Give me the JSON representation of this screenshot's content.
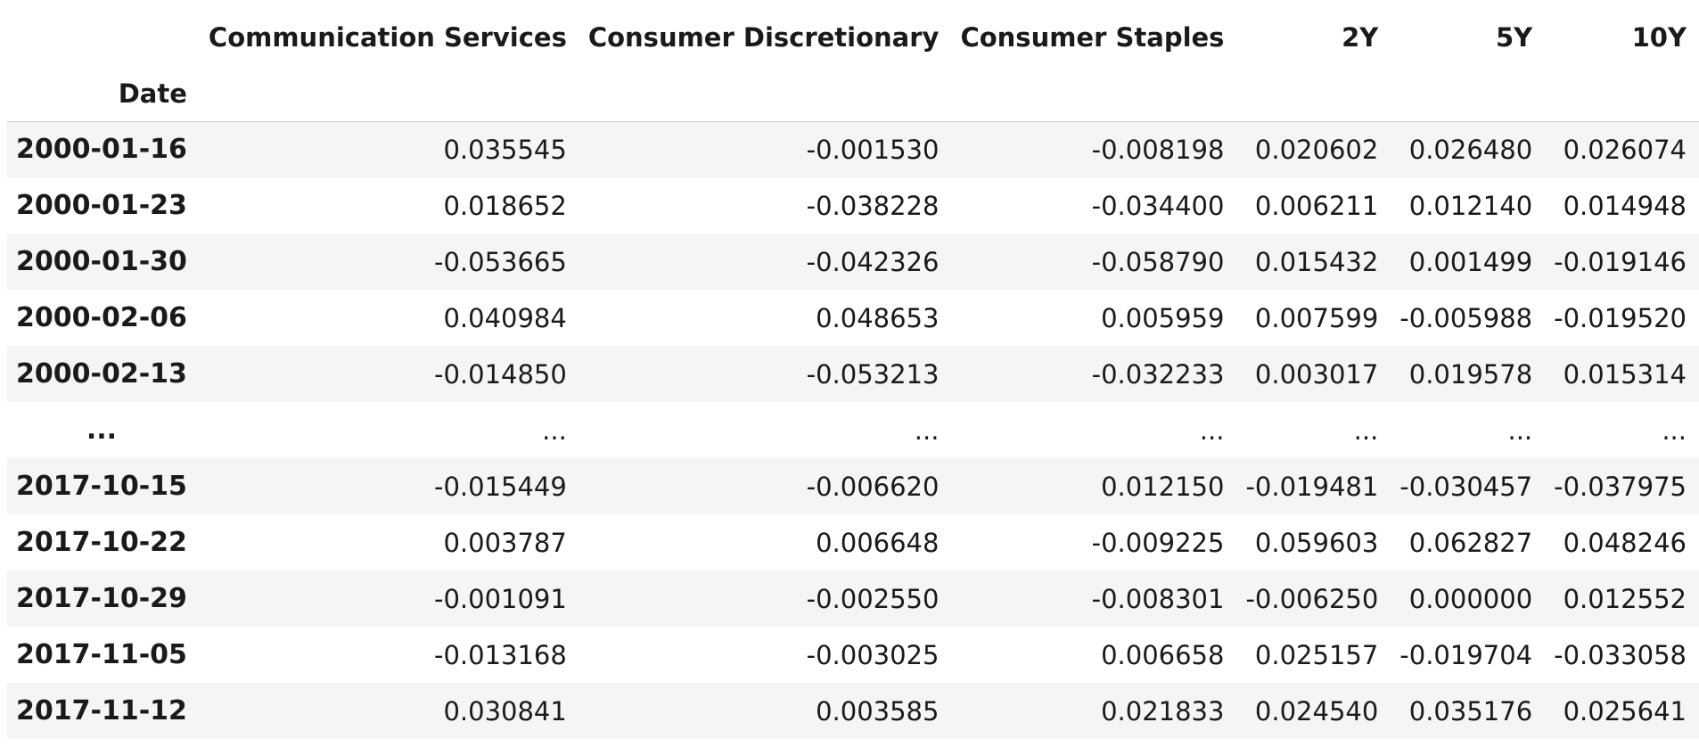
{
  "table": {
    "index_name": "Date",
    "columns": [
      "Communication Services",
      "Consumer Discretionary",
      "Consumer Staples",
      "2Y",
      "5Y",
      "10Y"
    ],
    "rows": [
      {
        "index": "2000-01-16",
        "values": [
          "0.035545",
          "-0.001530",
          "-0.008198",
          "0.020602",
          "0.026480",
          "0.026074"
        ]
      },
      {
        "index": "2000-01-23",
        "values": [
          "0.018652",
          "-0.038228",
          "-0.034400",
          "0.006211",
          "0.012140",
          "0.014948"
        ]
      },
      {
        "index": "2000-01-30",
        "values": [
          "-0.053665",
          "-0.042326",
          "-0.058790",
          "0.015432",
          "0.001499",
          "-0.019146"
        ]
      },
      {
        "index": "2000-02-06",
        "values": [
          "0.040984",
          "0.048653",
          "0.005959",
          "0.007599",
          "-0.005988",
          "-0.019520"
        ]
      },
      {
        "index": "2000-02-13",
        "values": [
          "-0.014850",
          "-0.053213",
          "-0.032233",
          "0.003017",
          "0.019578",
          "0.015314"
        ]
      },
      {
        "index": "...",
        "values": [
          "...",
          "...",
          "...",
          "...",
          "...",
          "..."
        ]
      },
      {
        "index": "2017-10-15",
        "values": [
          "-0.015449",
          "-0.006620",
          "0.012150",
          "-0.019481",
          "-0.030457",
          "-0.037975"
        ]
      },
      {
        "index": "2017-10-22",
        "values": [
          "0.003787",
          "0.006648",
          "-0.009225",
          "0.059603",
          "0.062827",
          "0.048246"
        ]
      },
      {
        "index": "2017-10-29",
        "values": [
          "-0.001091",
          "-0.002550",
          "-0.008301",
          "-0.006250",
          "0.000000",
          "0.012552"
        ]
      },
      {
        "index": "2017-11-05",
        "values": [
          "-0.013168",
          "-0.003025",
          "0.006658",
          "0.025157",
          "-0.019704",
          "-0.033058"
        ]
      },
      {
        "index": "2017-11-12",
        "values": [
          "0.030841",
          "0.003585",
          "0.021833",
          "0.024540",
          "0.035176",
          "0.025641"
        ]
      }
    ]
  }
}
